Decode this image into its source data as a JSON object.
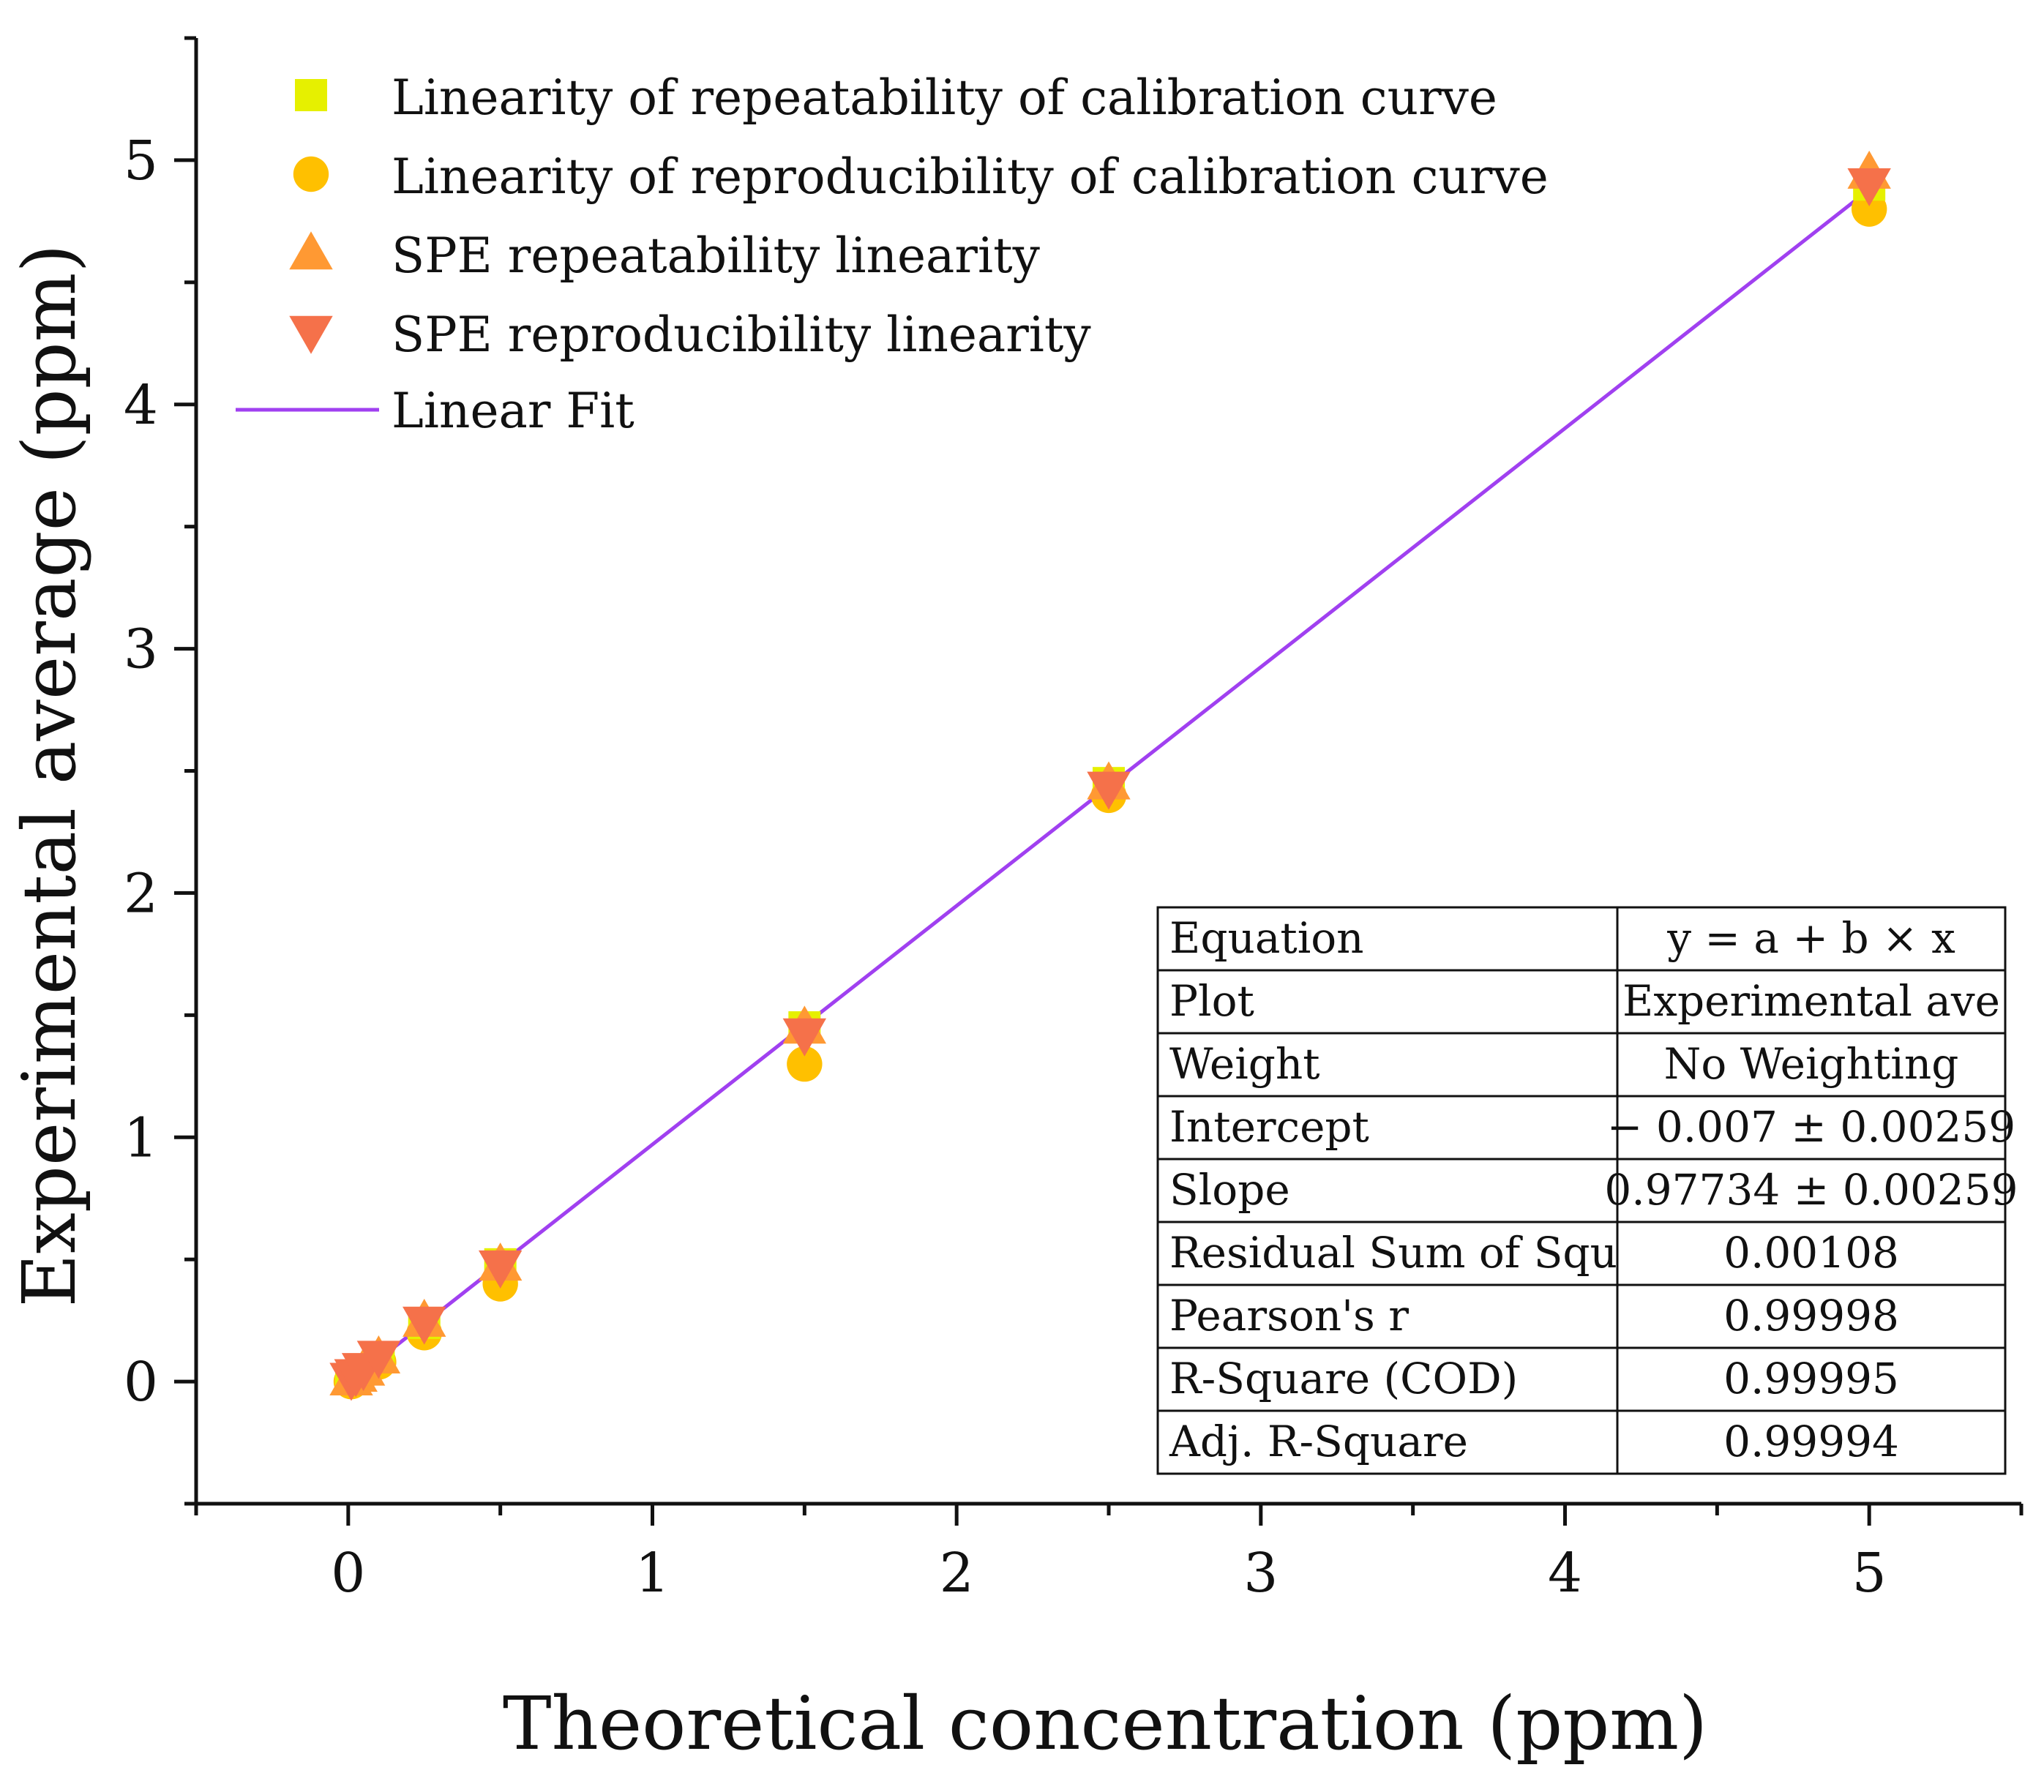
{
  "chart_data": {
    "type": "scatter",
    "xlabel": "Theoretical concentration (ppm)",
    "ylabel": "Experimental average (ppm)",
    "xlim": [
      -0.5,
      5.5
    ],
    "ylim": [
      -0.5,
      5.5
    ],
    "x_ticks": [
      "0",
      "1",
      "2",
      "3",
      "4",
      "5"
    ],
    "y_ticks": [
      "0",
      "1",
      "2",
      "3",
      "4",
      "5"
    ],
    "grid": false,
    "legend_position": "top-left",
    "series": [
      {
        "name": "Linearity of repeatability of calibration curve",
        "marker": "square",
        "color": "#e6f000",
        "x": [
          0.01,
          0.025,
          0.05,
          0.1,
          0.25,
          0.5,
          1.5,
          2.5,
          5
        ],
        "y": [
          0.01,
          0.025,
          0.05,
          0.1,
          0.24,
          0.48,
          1.45,
          2.45,
          4.9
        ]
      },
      {
        "name": "Linearity of reproducibility of calibration curve",
        "marker": "circle",
        "color": "#ffc000",
        "x": [
          0.01,
          0.025,
          0.05,
          0.1,
          0.25,
          0.5,
          1.5,
          2.5,
          5
        ],
        "y": [
          0.0,
          0.02,
          0.04,
          0.08,
          0.2,
          0.4,
          1.3,
          2.4,
          4.8
        ]
      },
      {
        "name": "SPE repeatability linearity",
        "marker": "triangle-up",
        "color": "#ff9933",
        "x": [
          0.01,
          0.025,
          0.05,
          0.1,
          0.25,
          0.5,
          1.5,
          2.5,
          5
        ],
        "y": [
          0.01,
          0.025,
          0.05,
          0.1,
          0.25,
          0.48,
          1.45,
          2.45,
          4.95
        ]
      },
      {
        "name": "SPE reproducibility linearity",
        "marker": "triangle-down",
        "color": "#f5714a",
        "x": [
          0.01,
          0.025,
          0.05,
          0.1,
          0.25,
          0.5,
          1.5,
          2.5,
          5
        ],
        "y": [
          0.01,
          0.025,
          0.05,
          0.1,
          0.24,
          0.47,
          1.42,
          2.43,
          4.9
        ]
      }
    ],
    "fit": {
      "name": "Linear Fit",
      "color": "#a040f0",
      "intercept": -0.007,
      "slope": 0.97734,
      "x_range": [
        0,
        5
      ]
    },
    "fit_table": {
      "rows": [
        [
          "Equation",
          "y = a + b × x"
        ],
        [
          "Plot",
          "Experimental ave"
        ],
        [
          "Weight",
          "No Weighting"
        ],
        [
          "Intercept",
          "− 0.007 ± 0.00259"
        ],
        [
          "Slope",
          "0.97734 ± 0.00259"
        ],
        [
          "Residual Sum of Squ",
          "0.00108"
        ],
        [
          "Pearson's r",
          "0.99998"
        ],
        [
          "R-Square (COD)",
          "0.99995"
        ],
        [
          "Adj. R-Square",
          "0.99994"
        ]
      ]
    }
  }
}
